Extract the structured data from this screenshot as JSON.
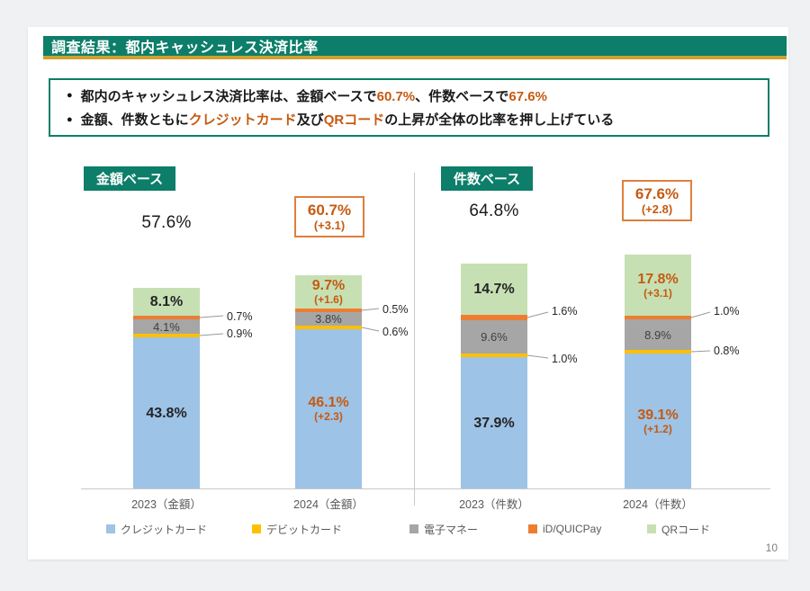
{
  "page": {
    "number": "10"
  },
  "header": {
    "title": "調査結果：都内キャッシュレス決済比率"
  },
  "summary": {
    "bullet1": {
      "pre": "都内のキャッシュレス決済比率は、金額ベースで",
      "v1": "60.7%",
      "mid": "、件数ベースで",
      "v2": "67.6%"
    },
    "bullet2": {
      "pre": "金額、件数ともに",
      "v1": "クレジットカード",
      "mid": "及び",
      "v2": "QRコード",
      "post": "の上昇が全体の比率を押し上げている"
    }
  },
  "colors": {
    "accent_teal": "#0C7E69",
    "accent_gold": "#D0A02F",
    "accent_orange": "#C55A11",
    "box_border_orange": "#E07E3C"
  },
  "chart_data": {
    "type": "bar",
    "stacked": true,
    "unit": "%",
    "ylim": [
      0,
      70
    ],
    "grid": false,
    "legend_position": "bottom",
    "legend": [
      {
        "name": "クレジットカード",
        "color": "#9DC3E6"
      },
      {
        "name": "デビットカード",
        "color": "#FFC000"
      },
      {
        "name": "電子マネー",
        "color": "#A6A6A6"
      },
      {
        "name": "iD/QUICPay",
        "color": "#ED7D31"
      },
      {
        "name": "QRコード",
        "color": "#C6E0B4"
      }
    ],
    "panels": [
      {
        "badge": "金額ベース",
        "total_2023": {
          "value": 57.6,
          "label": "57.6%"
        },
        "total_2024": {
          "value": 60.7,
          "label": "60.7%",
          "delta": "(+3.1)"
        },
        "bars": [
          {
            "category": "2023（金額）",
            "credit": {
              "value": 43.8,
              "label": "43.8%"
            },
            "debit": {
              "value": 0.9,
              "label": "0.9%"
            },
            "emoney": {
              "value": 4.1,
              "label": "4.1%"
            },
            "idpay": {
              "value": 0.7,
              "label": "0.7%"
            },
            "qr": {
              "value": 8.1,
              "label": "8.1%"
            }
          },
          {
            "category": "2024（金額）",
            "credit": {
              "value": 46.1,
              "label": "46.1%",
              "delta": "(+2.3)"
            },
            "debit": {
              "value": 0.6,
              "label": "0.6%"
            },
            "emoney": {
              "value": 3.8,
              "label": "3.8%"
            },
            "idpay": {
              "value": 0.5,
              "label": "0.5%"
            },
            "qr": {
              "value": 9.7,
              "label": "9.7%",
              "delta": "(+1.6)"
            }
          }
        ]
      },
      {
        "badge": "件数ベース",
        "total_2023": {
          "value": 64.8,
          "label": "64.8%"
        },
        "total_2024": {
          "value": 67.6,
          "label": "67.6%",
          "delta": "(+2.8)"
        },
        "bars": [
          {
            "category": "2023（件数）",
            "credit": {
              "value": 37.9,
              "label": "37.9%"
            },
            "debit": {
              "value": 1.0,
              "label": "1.0%"
            },
            "emoney": {
              "value": 9.6,
              "label": "9.6%"
            },
            "idpay": {
              "value": 1.6,
              "label": "1.6%"
            },
            "qr": {
              "value": 14.7,
              "label": "14.7%"
            }
          },
          {
            "category": "2024（件数）",
            "credit": {
              "value": 39.1,
              "label": "39.1%",
              "delta": "(+1.2)"
            },
            "debit": {
              "value": 0.8,
              "label": "0.8%"
            },
            "emoney": {
              "value": 8.9,
              "label": "8.9%"
            },
            "idpay": {
              "value": 1.0,
              "label": "1.0%"
            },
            "qr": {
              "value": 17.8,
              "label": "17.8%",
              "delta": "(+3.1)"
            }
          }
        ]
      }
    ]
  }
}
